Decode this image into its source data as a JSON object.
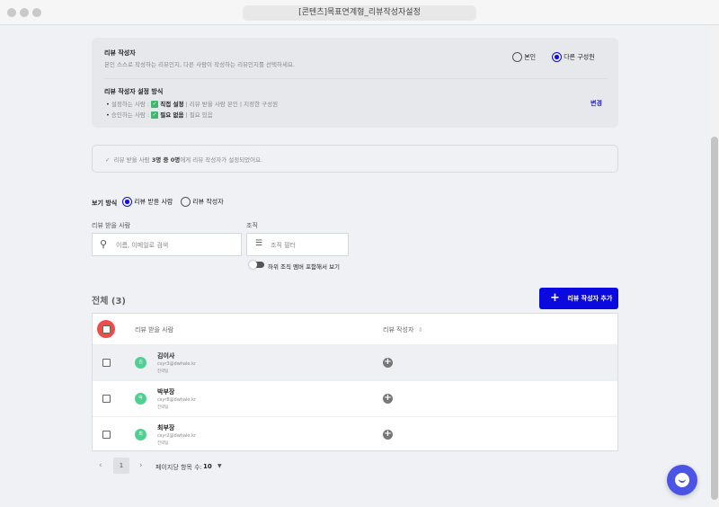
{
  "window": {
    "title": "[콘텐츠]목표연계형_리뷰작성자설정"
  },
  "writer_card": {
    "title": "리뷰 작성자",
    "description": "본인 스스로 작성하는 리뷰인지, 다른 사람이 작성하는 리뷰인지를 선택하세요.",
    "options": [
      {
        "label": "본인",
        "selected": false
      },
      {
        "label": "다른 구성원",
        "selected": true
      }
    ],
    "method_title": "리뷰 작성자 설정 방식",
    "setter_label": "설정하는 사람 :",
    "setter_selected": "직접 설정",
    "setter_rest": " | 리뷰 받을 사람 본인 | 지정한 구성원",
    "approver_label": "승인하는 사람 :",
    "approver_selected": "필요 없음",
    "approver_rest": " | 필요 있음",
    "change_link": "변경"
  },
  "notice": {
    "pre": "리뷰 받을 사람 ",
    "count": "3명 중 0명",
    "post": "에게 리뷰 작성자가 설정되었어요."
  },
  "view": {
    "label": "보기 방식",
    "options": [
      {
        "label": "리뷰 받을 사람",
        "selected": true
      },
      {
        "label": "리뷰 작성자",
        "selected": false
      }
    ]
  },
  "filters": {
    "reviewee_label": "리뷰 받을 사람",
    "search_placeholder": "이름, 이메일로 검색",
    "org_label": "조직",
    "org_placeholder": "조직 필터",
    "toggle_label": "하위 조직 멤버 포함해서 보기",
    "toggle_on": false
  },
  "list": {
    "total": "전체 (3)",
    "add_button": "리뷰 작성자 추가",
    "columns": [
      "리뷰 받을 사람",
      "리뷰 작성자"
    ],
    "rows": [
      {
        "initial": "김",
        "name": "김이사",
        "email": "csyr3@dwhale.kr",
        "team": "전략팀"
      },
      {
        "initial": "박",
        "name": "박부장",
        "email": "csyr8@dwhale.kr",
        "team": "전략팀"
      },
      {
        "initial": "최",
        "name": "최부장",
        "email": "csyr2@dwhale.kr",
        "team": "전략팀"
      }
    ]
  },
  "pagination": {
    "page": "1",
    "per_page_label": "페이지당 항목 수:",
    "per_page": "10"
  },
  "colors": {
    "accent": "#0a0ae0",
    "avatar": "#4fcf92",
    "highlight": "#f04b4b"
  }
}
